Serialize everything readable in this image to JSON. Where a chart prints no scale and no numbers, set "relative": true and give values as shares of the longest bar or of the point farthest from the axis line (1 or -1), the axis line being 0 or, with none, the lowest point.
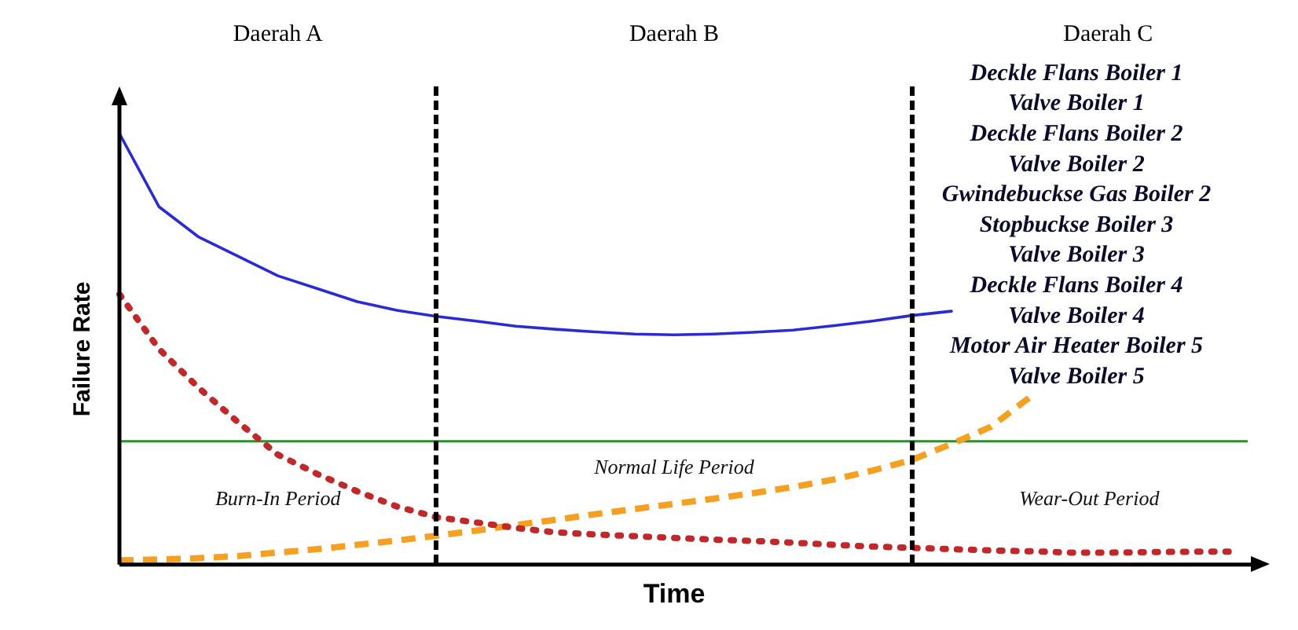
{
  "chart_data": {
    "type": "line",
    "xlabel": "Time",
    "ylabel": "Failure Rate",
    "relative": true,
    "marker": "none",
    "categories": [
      null,
      null,
      null,
      null,
      null,
      null,
      null,
      null,
      null,
      null,
      null,
      null,
      null,
      null,
      null,
      null,
      null,
      null,
      null,
      null,
      null,
      null,
      null,
      null,
      null,
      null,
      null,
      null,
      null
    ],
    "series": [
      {
        "color": "#2b2bd6",
        "line_style": "solid",
        "values": [
          1.0,
          0.83,
          0.76,
          0.715,
          0.67,
          0.64,
          0.61,
          0.59,
          0.576,
          0.565,
          0.553,
          0.546,
          0.54,
          0.535,
          0.533,
          0.535,
          0.539,
          0.544,
          0.554,
          0.565,
          0.578,
          0.588,
          null,
          null,
          null,
          null,
          null,
          null,
          null
        ]
      },
      {
        "color": "#c0282a",
        "line_style": "dotted",
        "values": [
          0.627,
          0.5,
          0.41,
          0.33,
          0.255,
          0.21,
          0.17,
          0.135,
          0.11,
          0.098,
          0.085,
          0.075,
          0.07,
          0.066,
          0.062,
          0.058,
          0.055,
          0.051,
          0.046,
          0.042,
          0.039,
          0.036,
          0.033,
          0.031,
          0.028,
          0.028,
          0.029,
          0.03,
          0.03
        ]
      },
      {
        "color": "#f5a020",
        "line_style": "dashed",
        "values": [
          0.01,
          0.012,
          0.015,
          0.02,
          0.028,
          0.036,
          0.046,
          0.056,
          0.067,
          0.079,
          0.092,
          0.104,
          0.117,
          0.129,
          0.141,
          0.153,
          0.166,
          0.18,
          0.197,
          0.218,
          0.243,
          0.28,
          0.32,
          0.39,
          null,
          null,
          null,
          null,
          null
        ]
      }
    ],
    "ref_lines": [
      {
        "axis": "y",
        "value": 0.286,
        "color": "#2e8b2e",
        "line_style": "solid"
      }
    ],
    "annotations": [
      "Daerah A",
      "Daerah B",
      "Daerah C",
      "Burn-In Period",
      "Normal Life Period",
      "Wear-Out Period",
      "Deckle Flans Boiler 1",
      "Valve Boiler 1",
      "Deckle Flans Boiler 2",
      "Valve Boiler 2",
      "Gwindebuckse Gas Boiler 2",
      "Stopbuckse Boiler 3",
      "Valve Boiler 3",
      "Deckle Flans Boiler 4",
      "Valve Boiler 4",
      "Motor Air Heater Boiler 5",
      "Valve Boiler 5"
    ]
  }
}
